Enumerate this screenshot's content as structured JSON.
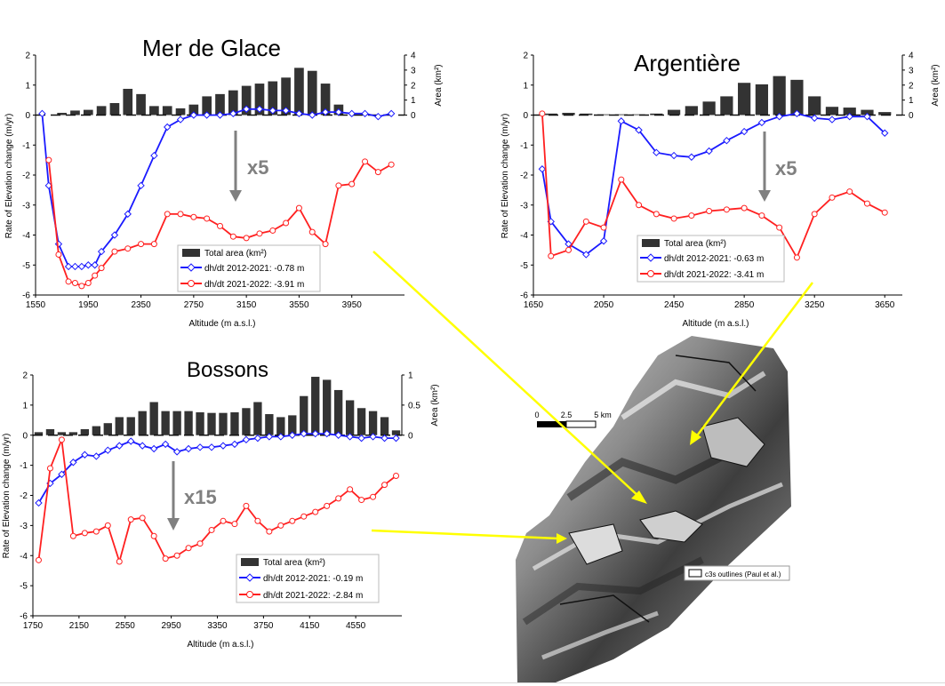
{
  "colors": {
    "bar": "#333333",
    "series1": "#1a1aff",
    "series2": "#ff2020",
    "arrow_gray": "#808080",
    "arrow_yellow": "#ffff00",
    "axis": "#000000"
  },
  "legend_total_area": "Total area (km²)",
  "map": {
    "scale_labels": [
      "0",
      "2.5",
      "5 km"
    ],
    "legend_label": "c3s outlines (Paul et al.)",
    "legend_icon": "outline-rectangle-icon"
  },
  "chart_data": [
    {
      "type": "bar+line",
      "title": "Mer de Glace",
      "xlabel": "Altitude (m a.s.l.)",
      "ylabel": "Rate of Elevation change (m/yr)",
      "y2label": "Area (km²)",
      "xlim": [
        1550,
        4350
      ],
      "xticks": [
        1550,
        1950,
        2350,
        2750,
        3150,
        3550,
        3950
      ],
      "ylim": [
        -6,
        2
      ],
      "yticks": [
        -6,
        -5,
        -4,
        -3,
        -2,
        -1,
        0,
        1,
        2
      ],
      "y2lim": [
        0,
        4
      ],
      "y2ticks": [
        0,
        1,
        2,
        3,
        4
      ],
      "scale_label": "x5",
      "bars": {
        "name": "Total area (km²)",
        "x": [
          1750,
          1850,
          1950,
          2050,
          2150,
          2250,
          2350,
          2450,
          2550,
          2650,
          2750,
          2850,
          2950,
          3050,
          3150,
          3250,
          3350,
          3450,
          3550,
          3650,
          3750,
          3850,
          3950,
          4050,
          4150,
          4250
        ],
        "values": [
          0.15,
          0.3,
          0.35,
          0.6,
          0.8,
          1.75,
          1.4,
          0.6,
          0.6,
          0.45,
          0.7,
          1.25,
          1.4,
          1.65,
          1.95,
          2.1,
          2.25,
          2.5,
          3.15,
          2.95,
          2.1,
          0.7,
          0,
          0,
          0,
          0
        ]
      },
      "series": [
        {
          "name": "dh/dt 2012-2021: -0.78 m",
          "x": [
            1600,
            1650,
            1725,
            1800,
            1850,
            1900,
            1950,
            2000,
            2050,
            2150,
            2250,
            2350,
            2450,
            2550,
            2650,
            2750,
            2850,
            2950,
            3050,
            3150,
            3250,
            3350,
            3450,
            3550,
            3650,
            3750,
            3850,
            3950,
            4050,
            4150,
            4250
          ],
          "values": [
            0.05,
            -2.35,
            -4.3,
            -5.05,
            -5.05,
            -5.05,
            -5.0,
            -5.0,
            -4.55,
            -4.0,
            -3.3,
            -2.35,
            -1.35,
            -0.4,
            -0.15,
            0,
            0,
            0,
            0.05,
            0.2,
            0.2,
            0.15,
            0.15,
            0.05,
            0,
            0.1,
            0.1,
            0.05,
            0.05,
            -0.05,
            0.05
          ]
        },
        {
          "name": "dh/dt 2021-2022: -3.91 m",
          "x": [
            1650,
            1725,
            1800,
            1850,
            1900,
            1950,
            2000,
            2050,
            2150,
            2250,
            2350,
            2450,
            2550,
            2650,
            2750,
            2850,
            2950,
            3050,
            3150,
            3250,
            3350,
            3450,
            3550,
            3650,
            3750,
            3850,
            3950,
            4050,
            4150,
            4250
          ],
          "values": [
            -1.5,
            -4.65,
            -5.55,
            -5.6,
            -5.7,
            -5.6,
            -5.35,
            -5.1,
            -4.55,
            -4.45,
            -4.3,
            -4.3,
            -3.3,
            -3.3,
            -3.4,
            -3.45,
            -3.7,
            -4.05,
            -4.1,
            -3.95,
            -3.85,
            -3.6,
            -3.1,
            -3.9,
            -4.3,
            -2.35,
            -2.3,
            -1.55,
            -1.9,
            -1.65
          ]
        }
      ]
    },
    {
      "type": "bar+line",
      "title": "Argentière",
      "xlabel": "Altitude (m a.s.l.)",
      "ylabel": "Rate of Elevation change (m/yr)",
      "y2label": "Area (km²)",
      "xlim": [
        1650,
        3750
      ],
      "xticks": [
        1650,
        2050,
        2450,
        2850,
        3250,
        3650
      ],
      "ylim": [
        -6,
        2
      ],
      "yticks": [
        -6,
        -5,
        -4,
        -3,
        -2,
        -1,
        0,
        1,
        2
      ],
      "y2lim": [
        0,
        4
      ],
      "y2ticks": [
        0,
        1,
        2,
        3,
        4
      ],
      "scale_label": "x5",
      "bars": {
        "name": "Total area (km²)",
        "x": [
          1750,
          1850,
          1950,
          2050,
          2150,
          2250,
          2350,
          2450,
          2550,
          2650,
          2750,
          2850,
          2950,
          3050,
          3150,
          3250,
          3350,
          3450,
          3550,
          3650
        ],
        "values": [
          0.1,
          0.15,
          0.1,
          0.05,
          0.05,
          0.05,
          0.1,
          0.35,
          0.6,
          0.9,
          1.25,
          2.15,
          2.05,
          2.6,
          2.35,
          1.25,
          0.55,
          0.5,
          0.35,
          0.2
        ]
      },
      "series": [
        {
          "name": "dh/dt 2012-2021: -0.63 m",
          "x": [
            1700,
            1750,
            1850,
            1950,
            2050,
            2150,
            2250,
            2350,
            2450,
            2550,
            2650,
            2750,
            2850,
            2950,
            3050,
            3150,
            3250,
            3350,
            3450,
            3550,
            3650
          ],
          "values": [
            -1.8,
            -3.55,
            -4.3,
            -4.65,
            -4.2,
            -0.2,
            -0.5,
            -1.25,
            -1.35,
            -1.4,
            -1.2,
            -0.85,
            -0.55,
            -0.25,
            -0.05,
            0.05,
            -0.1,
            -0.15,
            -0.05,
            -0.05,
            -0.6
          ]
        },
        {
          "name": "dh/dt 2021-2022: -3.41 m",
          "x": [
            1700,
            1750,
            1850,
            1950,
            2050,
            2150,
            2250,
            2350,
            2450,
            2550,
            2650,
            2750,
            2850,
            2950,
            3050,
            3150,
            3250,
            3350,
            3450,
            3550,
            3650
          ],
          "values": [
            0.05,
            -4.7,
            -4.5,
            -3.55,
            -3.75,
            -2.15,
            -3.0,
            -3.3,
            -3.45,
            -3.35,
            -3.2,
            -3.15,
            -3.1,
            -3.35,
            -3.75,
            -4.75,
            -3.3,
            -2.75,
            -2.55,
            -2.95,
            -3.25
          ]
        }
      ]
    },
    {
      "type": "bar+line",
      "title": "Bossons",
      "xlabel": "Altitude (m a.s.l.)",
      "ylabel": "Rate of Elevation change (m/yr)",
      "y2label": "Area (km²)",
      "xlim": [
        1750,
        4950
      ],
      "xticks": [
        1750,
        2150,
        2550,
        2950,
        3350,
        3750,
        4150,
        4550
      ],
      "ylim": [
        -6,
        2
      ],
      "yticks": [
        -6,
        -5,
        -4,
        -3,
        -2,
        -1,
        0,
        1,
        2
      ],
      "y2lim": [
        0,
        1
      ],
      "y2ticks": [
        0,
        0.5,
        1
      ],
      "scale_label": "x15",
      "bars": {
        "name": "Total area (km²)",
        "x": [
          1800,
          1900,
          2000,
          2100,
          2200,
          2300,
          2400,
          2500,
          2600,
          2700,
          2800,
          2900,
          3000,
          3100,
          3200,
          3300,
          3400,
          3500,
          3600,
          3700,
          3800,
          3900,
          4000,
          4100,
          4200,
          4300,
          4400,
          4500,
          4600,
          4700,
          4800,
          4900
        ],
        "values": [
          0.05,
          0.1,
          0.05,
          0.05,
          0.1,
          0.15,
          0.2,
          0.3,
          0.3,
          0.4,
          0.55,
          0.4,
          0.4,
          0.4,
          0.38,
          0.37,
          0.37,
          0.38,
          0.45,
          0.55,
          0.35,
          0.3,
          0.33,
          0.65,
          0.97,
          0.92,
          0.75,
          0.58,
          0.45,
          0.4,
          0.3,
          0.08
        ]
      },
      "series": [
        {
          "name": "dh/dt 2012-2021: -0.19 m",
          "x": [
            1800,
            1900,
            2000,
            2100,
            2200,
            2300,
            2400,
            2500,
            2600,
            2700,
            2800,
            2900,
            3000,
            3100,
            3200,
            3300,
            3400,
            3500,
            3600,
            3700,
            3800,
            3900,
            4000,
            4100,
            4200,
            4300,
            4400,
            4500,
            4600,
            4700,
            4800,
            4900
          ],
          "values": [
            -2.25,
            -1.6,
            -1.3,
            -0.9,
            -0.65,
            -0.7,
            -0.5,
            -0.35,
            -0.2,
            -0.35,
            -0.45,
            -0.3,
            -0.55,
            -0.45,
            -0.4,
            -0.4,
            -0.35,
            -0.3,
            -0.15,
            -0.1,
            -0.05,
            -0.05,
            0,
            0.05,
            0.05,
            0.05,
            0,
            -0.05,
            -0.1,
            -0.05,
            -0.1,
            -0.1
          ]
        },
        {
          "name": "dh/dt 2021-2022: -2.84 m",
          "x": [
            1800,
            1900,
            2000,
            2100,
            2200,
            2300,
            2400,
            2500,
            2600,
            2700,
            2800,
            2900,
            3000,
            3100,
            3200,
            3300,
            3400,
            3500,
            3600,
            3700,
            3800,
            3900,
            4000,
            4100,
            4200,
            4300,
            4400,
            4500,
            4600,
            4700,
            4800,
            4900
          ],
          "values": [
            -4.15,
            -1.1,
            -0.15,
            -3.35,
            -3.25,
            -3.2,
            -3.0,
            -4.2,
            -2.8,
            -2.75,
            -3.35,
            -4.1,
            -4.0,
            -3.75,
            -3.6,
            -3.15,
            -2.85,
            -2.95,
            -2.35,
            -2.85,
            -3.2,
            -3.0,
            -2.85,
            -2.7,
            -2.55,
            -2.35,
            -2.1,
            -1.8,
            -2.15,
            -2.05,
            -1.65,
            -1.35
          ]
        }
      ]
    }
  ]
}
